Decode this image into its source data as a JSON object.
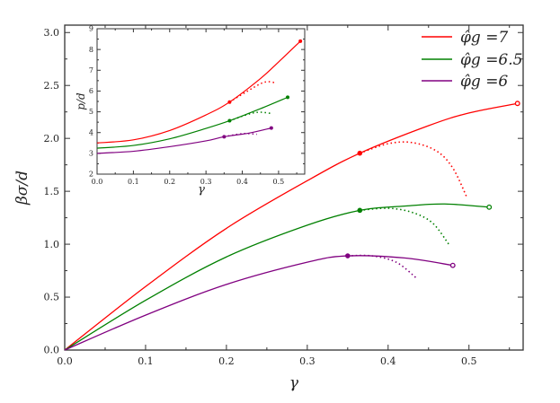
{
  "chart_data": [
    {
      "type": "line",
      "xlabel": "γ",
      "ylabel": "βσ/d",
      "xlim": [
        0,
        0.567
      ],
      "ylim": [
        0,
        3.07
      ],
      "xticks": [
        "0.0",
        "0.1",
        "0.2",
        "0.3",
        "0.4",
        "0.5"
      ],
      "yticks": [
        "0.0",
        "0.5",
        "1.0",
        "1.5",
        "2.0",
        "2.5",
        "3.0"
      ],
      "legend_position": "top-right",
      "series": [
        {
          "name": "φ̂g =7",
          "color": "#ff0000",
          "solid": [
            [
              0,
              0
            ],
            [
              0.1,
              0.6
            ],
            [
              0.2,
              1.15
            ],
            [
              0.3,
              1.6
            ],
            [
              0.365,
              1.86
            ],
            [
              0.45,
              2.12
            ],
            [
              0.5,
              2.24
            ],
            [
              0.56,
              2.33
            ]
          ],
          "dotted": [
            [
              0.365,
              1.86
            ],
            [
              0.4,
              1.95
            ],
            [
              0.43,
              1.96
            ],
            [
              0.46,
              1.88
            ],
            [
              0.48,
              1.72
            ],
            [
              0.497,
              1.45
            ]
          ],
          "filled_marker": [
            0.365,
            1.86
          ],
          "open_marker": [
            0.56,
            2.33
          ]
        },
        {
          "name": "φ̂g =6.5",
          "color": "#008000",
          "solid": [
            [
              0,
              0
            ],
            [
              0.1,
              0.47
            ],
            [
              0.2,
              0.88
            ],
            [
              0.3,
              1.18
            ],
            [
              0.365,
              1.32
            ],
            [
              0.42,
              1.36
            ],
            [
              0.47,
              1.38
            ],
            [
              0.525,
              1.35
            ]
          ],
          "dotted": [
            [
              0.365,
              1.32
            ],
            [
              0.4,
              1.34
            ],
            [
              0.43,
              1.3
            ],
            [
              0.455,
              1.2
            ],
            [
              0.475,
              1.0
            ]
          ],
          "filled_marker": [
            0.365,
            1.32
          ],
          "open_marker": [
            0.525,
            1.35
          ]
        },
        {
          "name": "φ̂g =6",
          "color": "#800080",
          "solid": [
            [
              0,
              0
            ],
            [
              0.1,
              0.33
            ],
            [
              0.2,
              0.62
            ],
            [
              0.3,
              0.83
            ],
            [
              0.35,
              0.89
            ],
            [
              0.42,
              0.87
            ],
            [
              0.48,
              0.8
            ]
          ],
          "dotted": [
            [
              0.35,
              0.89
            ],
            [
              0.38,
              0.89
            ],
            [
              0.41,
              0.83
            ],
            [
              0.435,
              0.68
            ]
          ],
          "filled_marker": [
            0.35,
            0.89
          ],
          "open_marker": [
            0.48,
            0.8
          ]
        }
      ]
    },
    {
      "type": "line",
      "xlabel": "γ",
      "ylabel": "p/d",
      "xlim": [
        0,
        0.572
      ],
      "ylim": [
        2,
        9
      ],
      "xticks": [
        "0.0",
        "0.1",
        "0.2",
        "0.3",
        "0.4",
        "0.5"
      ],
      "yticks": [
        "2",
        "3",
        "4",
        "5",
        "6",
        "7",
        "8",
        "9"
      ],
      "series": [
        {
          "color": "#ff0000",
          "solid": [
            [
              0,
              3.5
            ],
            [
              0.1,
              3.65
            ],
            [
              0.2,
              4.1
            ],
            [
              0.3,
              4.85
            ],
            [
              0.365,
              5.47
            ],
            [
              0.45,
              6.6
            ],
            [
              0.5,
              7.4
            ],
            [
              0.56,
              8.4
            ]
          ],
          "dotted": [
            [
              0.365,
              5.47
            ],
            [
              0.41,
              5.95
            ],
            [
              0.45,
              6.35
            ],
            [
              0.47,
              6.45
            ],
            [
              0.49,
              6.4
            ]
          ],
          "filled_marker": [
            0.365,
            5.47
          ],
          "end_marker": [
            0.56,
            8.4
          ]
        },
        {
          "color": "#008000",
          "solid": [
            [
              0,
              3.25
            ],
            [
              0.1,
              3.38
            ],
            [
              0.2,
              3.7
            ],
            [
              0.3,
              4.2
            ],
            [
              0.365,
              4.57
            ],
            [
              0.45,
              5.15
            ],
            [
              0.525,
              5.7
            ]
          ],
          "dotted": [
            [
              0.365,
              4.57
            ],
            [
              0.42,
              4.9
            ],
            [
              0.45,
              4.98
            ],
            [
              0.48,
              4.92
            ]
          ],
          "filled_marker": [
            0.365,
            4.57
          ],
          "end_marker": [
            0.525,
            5.7
          ]
        },
        {
          "color": "#800080",
          "solid": [
            [
              0,
              3.0
            ],
            [
              0.1,
              3.1
            ],
            [
              0.2,
              3.32
            ],
            [
              0.3,
              3.6
            ],
            [
              0.35,
              3.8
            ],
            [
              0.42,
              3.98
            ],
            [
              0.48,
              4.22
            ]
          ],
          "dotted": [
            [
              0.35,
              3.8
            ],
            [
              0.4,
              3.95
            ],
            [
              0.44,
              3.92
            ]
          ],
          "filled_marker": [
            0.35,
            3.8
          ],
          "end_marker": [
            0.48,
            4.22
          ]
        }
      ]
    }
  ]
}
